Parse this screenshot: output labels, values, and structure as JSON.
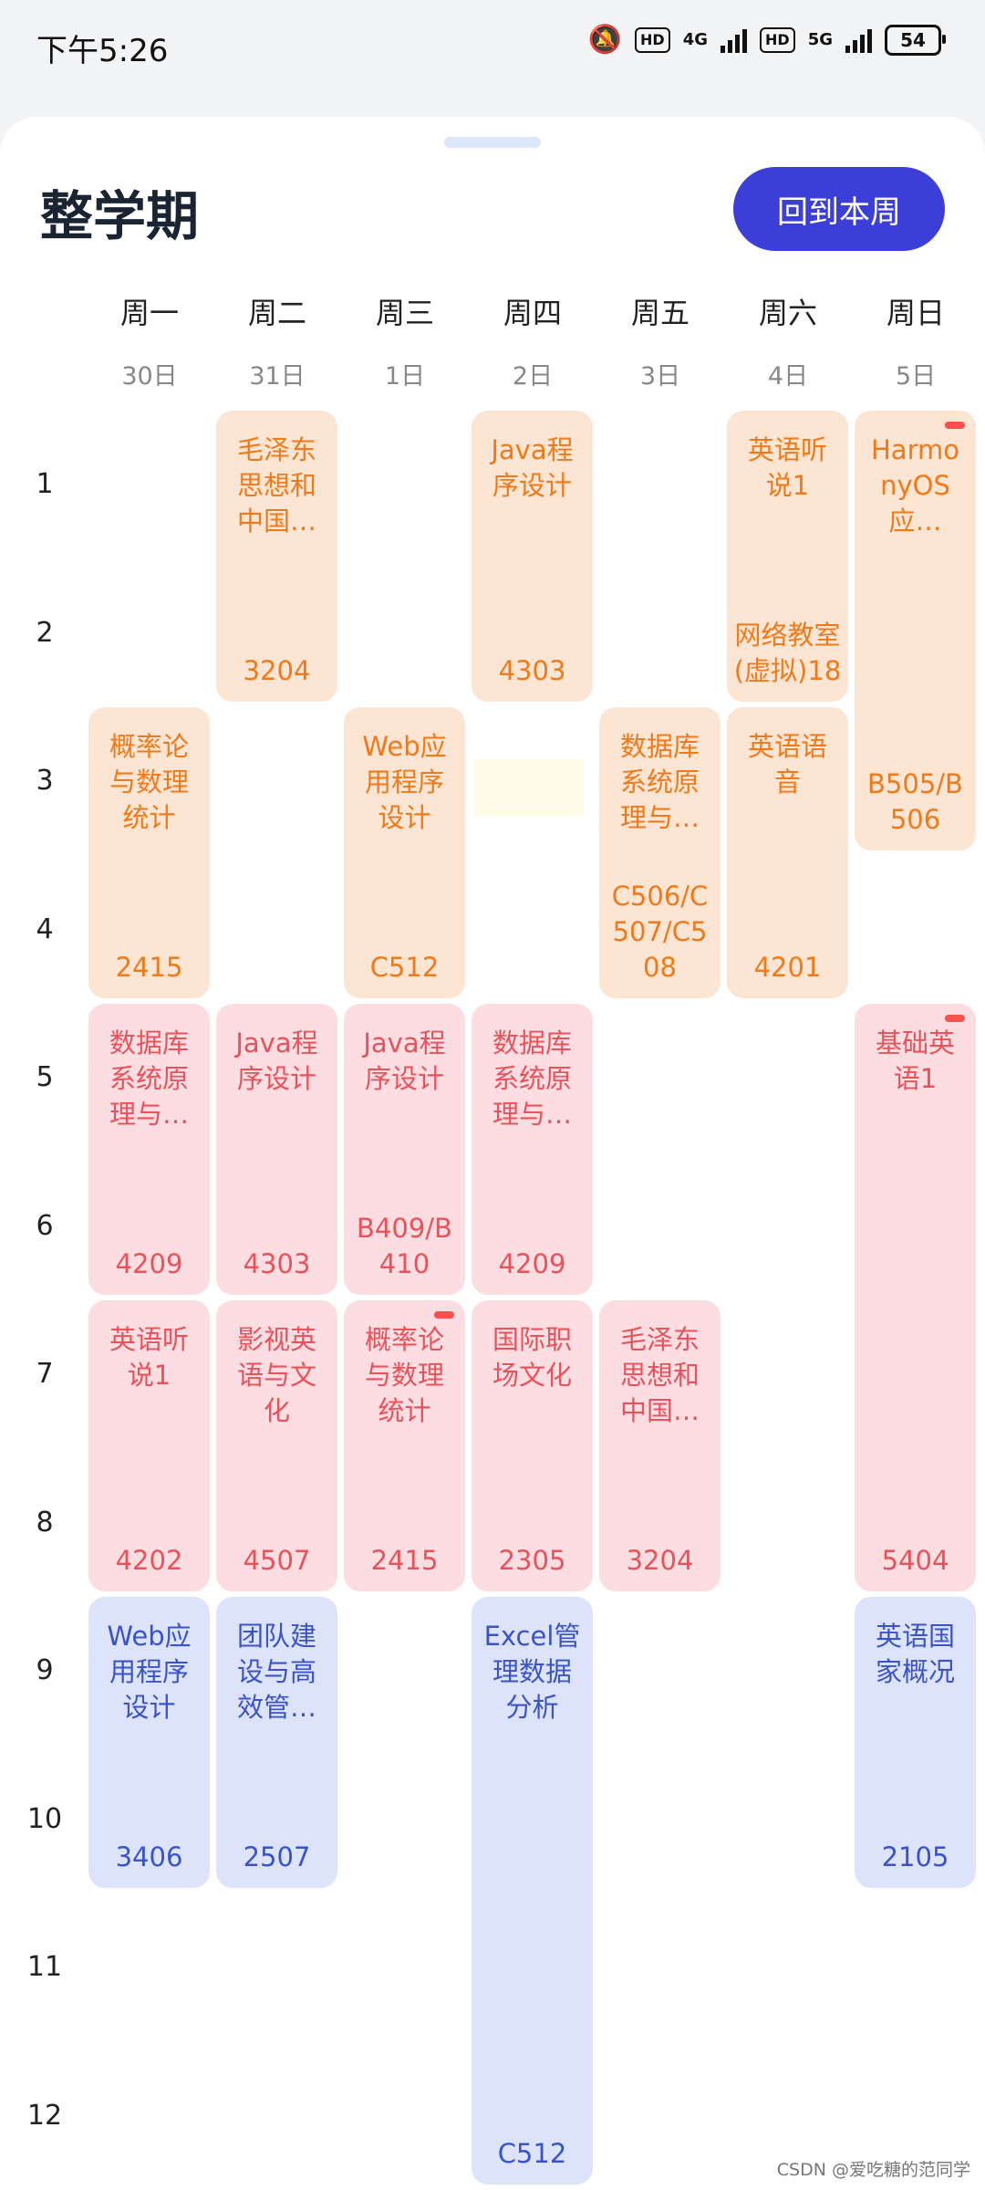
{
  "status_bar": {
    "time": "下午5:26",
    "hd1": "HD",
    "net1": "4G",
    "hd2": "HD",
    "net2": "5G",
    "battery": "54"
  },
  "header": {
    "title": "整学期",
    "back_button": "回到本周"
  },
  "days": [
    {
      "name": "周一",
      "date": "30日"
    },
    {
      "name": "周二",
      "date": "31日"
    },
    {
      "name": "周三",
      "date": "1日"
    },
    {
      "name": "周四",
      "date": "2日"
    },
    {
      "name": "周五",
      "date": "3日"
    },
    {
      "name": "周六",
      "date": "4日"
    },
    {
      "name": "周日",
      "date": "5日"
    }
  ],
  "periods": [
    "1",
    "2",
    "3",
    "4",
    "5",
    "6",
    "7",
    "8",
    "9",
    "10",
    "11",
    "12"
  ],
  "colors": {
    "orange": "#fce5d2",
    "pink": "#fcdde2",
    "blue": "#dde3fb",
    "accent": "#3b3fd8"
  },
  "courses": [
    {
      "day": 1,
      "start": 1,
      "end": 2,
      "name": "毛泽东思想和中国…",
      "room": "3204",
      "color": "orange"
    },
    {
      "day": 3,
      "start": 1,
      "end": 2,
      "name": "Java程序设计",
      "room": "4303",
      "color": "orange"
    },
    {
      "day": 5,
      "start": 1,
      "end": 2,
      "name": "英语听说1",
      "room": "网络教室(虚拟)18",
      "color": "orange"
    },
    {
      "day": 6,
      "start": 1,
      "end": 3,
      "name": "HarmonyOS应…",
      "room": "B505/B506",
      "color": "orange",
      "mark": true
    },
    {
      "day": 0,
      "start": 3,
      "end": 4,
      "name": "概率论与数理统计",
      "room": "2415",
      "color": "orange"
    },
    {
      "day": 2,
      "start": 3,
      "end": 4,
      "name": "Web应用程序设计",
      "room": "C512",
      "color": "orange"
    },
    {
      "day": 4,
      "start": 3,
      "end": 4,
      "name": "数据库系统原理与…",
      "room": "C506/C507/C508",
      "color": "orange"
    },
    {
      "day": 5,
      "start": 3,
      "end": 4,
      "name": "英语语音",
      "room": "4201",
      "color": "orange"
    },
    {
      "day": 0,
      "start": 5,
      "end": 6,
      "name": "数据库系统原理与…",
      "room": "4209",
      "color": "pink"
    },
    {
      "day": 1,
      "start": 5,
      "end": 6,
      "name": "Java程序设计",
      "room": "4303",
      "color": "pink"
    },
    {
      "day": 2,
      "start": 5,
      "end": 6,
      "name": "Java程序设计",
      "room": "B409/B410",
      "color": "pink"
    },
    {
      "day": 3,
      "start": 5,
      "end": 6,
      "name": "数据库系统原理与…",
      "room": "4209",
      "color": "pink"
    },
    {
      "day": 6,
      "start": 5,
      "end": 8,
      "name": "基础英语1",
      "room": "5404",
      "color": "pink",
      "mark": true
    },
    {
      "day": 0,
      "start": 7,
      "end": 8,
      "name": "英语听说1",
      "room": "4202",
      "color": "pink"
    },
    {
      "day": 1,
      "start": 7,
      "end": 8,
      "name": "影视英语与文化",
      "room": "4507",
      "color": "pink"
    },
    {
      "day": 2,
      "start": 7,
      "end": 8,
      "name": "概率论与数理统计",
      "room": "2415",
      "color": "pink",
      "mark": true
    },
    {
      "day": 3,
      "start": 7,
      "end": 8,
      "name": "国际职场文化",
      "room": "2305",
      "color": "pink"
    },
    {
      "day": 4,
      "start": 7,
      "end": 8,
      "name": "毛泽东思想和中国…",
      "room": "3204",
      "color": "pink"
    },
    {
      "day": 0,
      "start": 9,
      "end": 10,
      "name": "Web应用程序设计",
      "room": "3406",
      "color": "blue"
    },
    {
      "day": 1,
      "start": 9,
      "end": 10,
      "name": "团队建设与高效管…",
      "room": "2507",
      "color": "blue"
    },
    {
      "day": 3,
      "start": 9,
      "end": 12,
      "name": "Excel管理数据分析",
      "room": "C512",
      "color": "blue"
    },
    {
      "day": 6,
      "start": 9,
      "end": 10,
      "name": "英语国家概况",
      "room": "2105",
      "color": "blue"
    }
  ],
  "watermark": "CSDN @爱吃糖的范同学"
}
